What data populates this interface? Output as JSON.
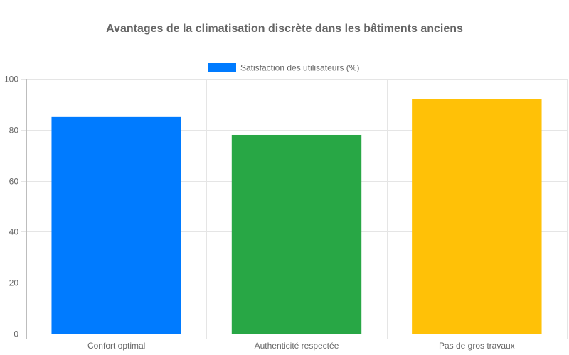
{
  "chart_data": {
    "type": "bar",
    "title": "Avantages de la climatisation discrète dans les bâtiments anciens",
    "categories": [
      "Confort optimal",
      "Authenticité respectée",
      "Pas de gros travaux"
    ],
    "series": [
      {
        "name": "Satisfaction des utilisateurs (%)",
        "values": [
          85,
          78,
          92
        ],
        "colors": [
          "#007bff",
          "#28a745",
          "#ffc107"
        ]
      }
    ],
    "legend_color": "#007bff",
    "legend_position": "top",
    "ylim": [
      0,
      100
    ],
    "yticks": [
      0,
      20,
      40,
      60,
      80,
      100
    ],
    "grid": true,
    "xlabel": "",
    "ylabel": ""
  }
}
